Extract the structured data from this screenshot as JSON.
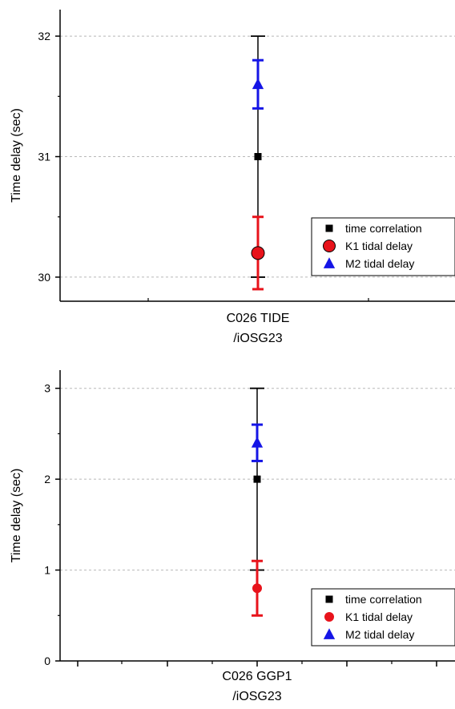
{
  "chart_data": [
    {
      "type": "scatter",
      "title": "",
      "ylabel": "Time delay (sec)",
      "xlabel": "",
      "category_lines": [
        "C026 TIDE",
        "/iOSG23"
      ],
      "ylim": [
        29.8,
        32.22
      ],
      "yticks": [
        30,
        31,
        32
      ],
      "ytick_labels": [
        "30",
        "31",
        "32"
      ],
      "grid": "horizontal dashed at major y ticks",
      "legend_position": "bottom-right",
      "series": [
        {
          "name": "time correlation",
          "marker": "square",
          "color": "#000000",
          "y": 31.0,
          "err_low": 30.0,
          "err_high": 32.0
        },
        {
          "name": "K1 tidal delay",
          "marker": "circle",
          "color": "#e8131b",
          "y": 30.2,
          "err_low": 29.9,
          "err_high": 30.5
        },
        {
          "name": "M2 tidal delay",
          "marker": "triangle",
          "color": "#1515e6",
          "y": 31.6,
          "err_low": 31.4,
          "err_high": 31.8
        }
      ]
    },
    {
      "type": "scatter",
      "title": "",
      "ylabel": "Time delay (sec)",
      "xlabel": "",
      "category_lines": [
        "C026 GGP1",
        "/iOSG23"
      ],
      "ylim": [
        0,
        3.2
      ],
      "yticks": [
        0,
        1,
        2,
        3
      ],
      "ytick_labels": [
        "0",
        "1",
        "2",
        "3"
      ],
      "grid": "horizontal dashed at y = 1, 2, 3",
      "legend_position": "bottom-right",
      "series": [
        {
          "name": "time correlation",
          "marker": "square",
          "color": "#000000",
          "y": 2.0,
          "err_low": 1.0,
          "err_high": 3.0
        },
        {
          "name": "K1 tidal delay",
          "marker": "circle",
          "color": "#e8131b",
          "y": 0.8,
          "err_low": 0.5,
          "err_high": 1.1
        },
        {
          "name": "M2 tidal delay",
          "marker": "triangle",
          "color": "#1515e6",
          "y": 2.4,
          "err_low": 2.2,
          "err_high": 2.6
        }
      ]
    }
  ]
}
